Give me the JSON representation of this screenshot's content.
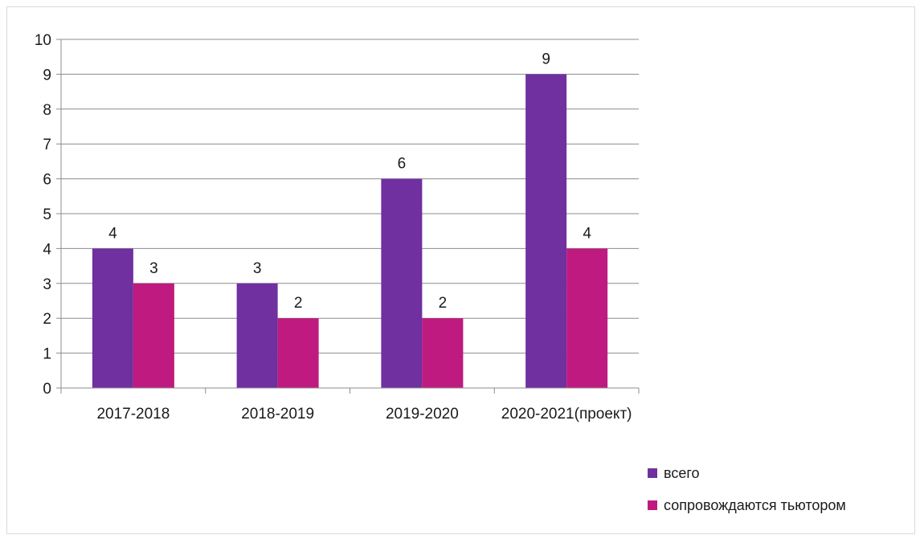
{
  "chart_data": {
    "type": "bar",
    "title": "",
    "xlabel": "",
    "ylabel": "",
    "categories": [
      "2017-2018",
      "2018-2019",
      "2019-2020",
      "2020-2021(проект)"
    ],
    "series": [
      {
        "name": "всего",
        "values": [
          4,
          3,
          6,
          9
        ],
        "color": "#7030a0"
      },
      {
        "name": "сопровождаются тьютором",
        "values": [
          3,
          2,
          2,
          4
        ],
        "color": "#be1a7f"
      }
    ],
    "ylim": [
      0,
      10
    ],
    "yticks": [
      0,
      1,
      2,
      3,
      4,
      5,
      6,
      7,
      8,
      9,
      10
    ],
    "grid": true,
    "data_labels": true,
    "legend_position": "bottom-right"
  }
}
